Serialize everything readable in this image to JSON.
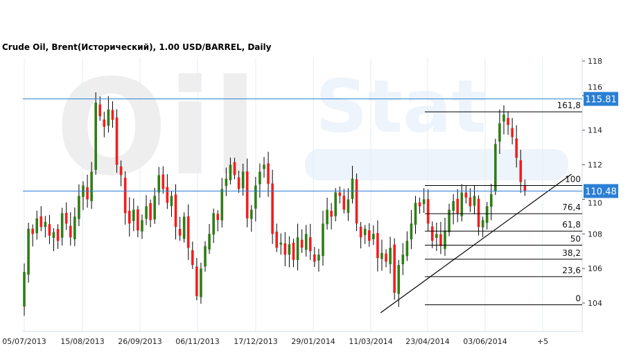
{
  "title": "Crude Oil, Brent(Исторический), 1.00 USD/BARREL, Daily",
  "watermark": {
    "word1": "Oil",
    "word2": "Stat"
  },
  "chart_data": {
    "type": "candlestick",
    "title": "Crude Oil, Brent(Исторический), 1.00 USD/BARREL, Daily",
    "ylim": [
      102.4,
      119.2
    ],
    "y_ticks": [
      "104",
      "106",
      "108",
      "110",
      "112",
      "114",
      "116",
      "118"
    ],
    "x_ticks": [
      "05/07/2013",
      "15/08/2013",
      "26/09/2013",
      "06/11/2013",
      "17/12/2013",
      "29/01/2014",
      "11/03/2014",
      "23/04/2014",
      "03/06/2014",
      "+5"
    ],
    "grid": true,
    "colors": {
      "up": "#2f7d16",
      "down": "#f21d1d",
      "wick": "#000000",
      "hline": "#2a7fd4",
      "grid": "#e3edf7"
    },
    "closes": [
      105.8,
      108.3,
      108.0,
      108.9,
      108.4,
      108.7,
      107.9,
      108.1,
      107.6,
      109.2,
      108.6,
      107.8,
      109.0,
      110.2,
      110.8,
      110.0,
      111.6,
      115.6,
      114.8,
      114.2,
      115.2,
      114.6,
      112.0,
      111.4,
      109.2,
      108.6,
      109.4,
      108.2,
      108.8,
      109.6,
      108.8,
      110.2,
      111.4,
      110.6,
      109.8,
      110.2,
      108.4,
      107.9,
      109.0,
      107.2,
      106.2,
      104.4,
      106.0,
      107.3,
      108.0,
      109.2,
      108.8,
      110.6,
      111.2,
      112.0,
      111.4,
      110.6,
      111.6,
      108.9,
      109.4,
      110.8,
      111.6,
      112.0,
      110.9,
      108.0,
      107.2,
      107.5,
      106.8,
      107.4,
      106.5,
      107.8,
      107.2,
      108.0,
      107.0,
      106.4,
      106.8,
      108.6,
      109.4,
      109.0,
      110.4,
      110.2,
      109.4,
      110.0,
      111.2,
      108.6,
      107.8,
      108.3,
      107.6,
      108.0,
      106.6,
      106.9,
      106.4,
      107.2,
      104.6,
      106.2,
      106.8,
      107.6,
      108.6,
      109.8,
      109.6,
      110.0,
      108.6,
      107.6,
      108.0,
      107.3,
      108.2,
      109.4,
      109.9,
      109.2,
      110.4,
      110.1,
      109.6,
      110.2,
      108.4,
      108.8,
      109.6,
      110.3,
      113.2,
      114.4,
      114.9,
      114.3,
      113.6,
      112.4,
      111.0,
      110.48
    ],
    "horizontal_lines": [
      {
        "value": 115.81,
        "label": "115.81"
      },
      {
        "value": 110.48,
        "label": "110.48"
      }
    ],
    "fibonacci": {
      "low": 103.9,
      "high": 110.8,
      "levels": [
        {
          "ratio": 1.618,
          "label": "161,8"
        },
        {
          "ratio": 1.0,
          "label": "100"
        },
        {
          "ratio": 0.764,
          "label": "76,4"
        },
        {
          "ratio": 0.618,
          "label": "61,8"
        },
        {
          "ratio": 0.5,
          "label": "50"
        },
        {
          "ratio": 0.382,
          "label": "38,2"
        },
        {
          "ratio": 0.236,
          "label": "23,6"
        },
        {
          "ratio": 0.0,
          "label": "0"
        }
      ]
    },
    "trendline": {
      "start": {
        "bar": 84.7,
        "price": 103.44
      },
      "end": {
        "bar": 130.1,
        "price": 111.46
      }
    }
  }
}
